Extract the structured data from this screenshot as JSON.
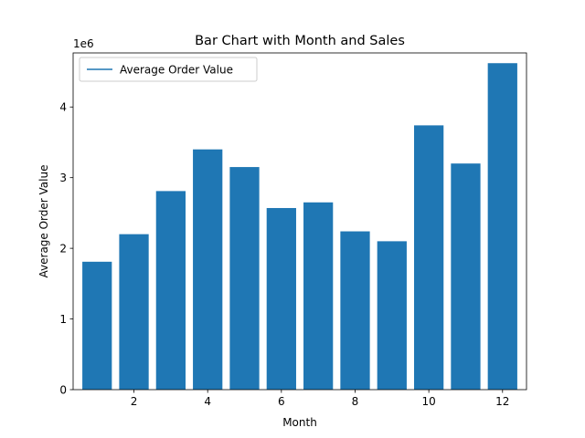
{
  "chart_data": {
    "type": "bar",
    "title": "Bar Chart with Month and Sales",
    "xlabel": "Month",
    "ylabel": "Average Order Value",
    "y_offset_label": "1e6",
    "legend": {
      "label": "Average Order Value",
      "placement": "top-left"
    },
    "x": [
      1,
      2,
      3,
      4,
      5,
      6,
      7,
      8,
      9,
      10,
      11,
      12
    ],
    "values": [
      1810000,
      2200000,
      2810000,
      3400000,
      3150000,
      2570000,
      2650000,
      2240000,
      2100000,
      3740000,
      3200000,
      4620000
    ],
    "xlim": [
      0.35,
      12.65
    ],
    "ylim": [
      0,
      4765000
    ],
    "x_ticks": [
      2,
      4,
      6,
      8,
      10,
      12
    ],
    "x_tick_labels": [
      "2",
      "4",
      "6",
      "8",
      "10",
      "12"
    ],
    "y_ticks": [
      0,
      1000000,
      2000000,
      3000000,
      4000000
    ],
    "y_tick_labels": [
      "0",
      "1",
      "2",
      "3",
      "4"
    ],
    "grid": false,
    "color": "#1f77b4"
  }
}
